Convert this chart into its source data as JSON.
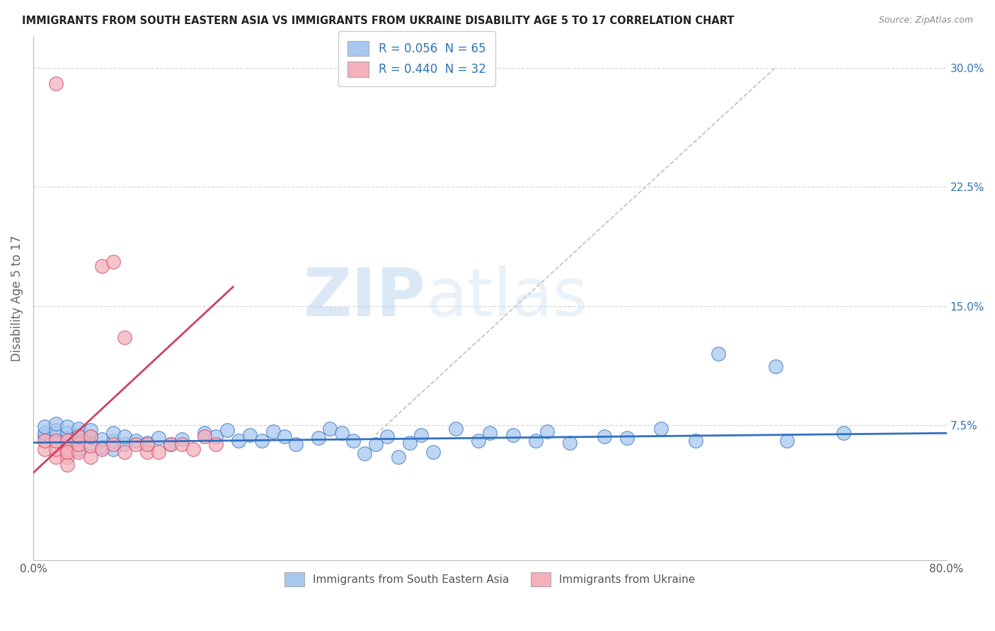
{
  "title": "IMMIGRANTS FROM SOUTH EASTERN ASIA VS IMMIGRANTS FROM UKRAINE DISABILITY AGE 5 TO 17 CORRELATION CHART",
  "source": "Source: ZipAtlas.com",
  "ylabel": "Disability Age 5 to 17",
  "xlim": [
    0.0,
    0.8
  ],
  "ylim": [
    -0.01,
    0.32
  ],
  "yticks": [
    0.075,
    0.15,
    0.225,
    0.3
  ],
  "ytick_labels": [
    "7.5%",
    "15.0%",
    "22.5%",
    "30.0%"
  ],
  "color_blue": "#a8c8f0",
  "color_pink": "#f4b0bb",
  "color_blue_line": "#3070c0",
  "color_pink_line": "#d04060",
  "color_text_blue": "#2E75B6",
  "color_diag_line": "#c0c0c0",
  "watermark_color": "#d8eaf8",
  "background_color": "#ffffff",
  "grid_color": "#d8d8d8",
  "blue_x": [
    0.01,
    0.01,
    0.01,
    0.02,
    0.02,
    0.02,
    0.02,
    0.03,
    0.03,
    0.03,
    0.03,
    0.04,
    0.04,
    0.04,
    0.04,
    0.05,
    0.05,
    0.05,
    0.06,
    0.06,
    0.07,
    0.07,
    0.07,
    0.08,
    0.08,
    0.09,
    0.1,
    0.11,
    0.12,
    0.13,
    0.15,
    0.16,
    0.17,
    0.18,
    0.19,
    0.2,
    0.21,
    0.22,
    0.23,
    0.25,
    0.26,
    0.27,
    0.28,
    0.29,
    0.3,
    0.31,
    0.32,
    0.33,
    0.34,
    0.35,
    0.37,
    0.39,
    0.4,
    0.42,
    0.44,
    0.45,
    0.47,
    0.5,
    0.52,
    0.55,
    0.58,
    0.6,
    0.65,
    0.66,
    0.71
  ],
  "blue_y": [
    0.068,
    0.07,
    0.074,
    0.065,
    0.068,
    0.072,
    0.076,
    0.063,
    0.067,
    0.07,
    0.074,
    0.06,
    0.065,
    0.069,
    0.073,
    0.064,
    0.068,
    0.072,
    0.061,
    0.066,
    0.06,
    0.065,
    0.07,
    0.063,
    0.068,
    0.065,
    0.064,
    0.067,
    0.063,
    0.066,
    0.07,
    0.068,
    0.072,
    0.065,
    0.069,
    0.065,
    0.071,
    0.068,
    0.063,
    0.067,
    0.073,
    0.07,
    0.065,
    0.057,
    0.063,
    0.068,
    0.055,
    0.064,
    0.069,
    0.058,
    0.073,
    0.065,
    0.07,
    0.069,
    0.065,
    0.071,
    0.064,
    0.068,
    0.067,
    0.073,
    0.065,
    0.12,
    0.112,
    0.065,
    0.07
  ],
  "pink_x": [
    0.01,
    0.01,
    0.02,
    0.02,
    0.02,
    0.02,
    0.03,
    0.03,
    0.03,
    0.03,
    0.03,
    0.04,
    0.04,
    0.04,
    0.05,
    0.05,
    0.05,
    0.06,
    0.06,
    0.07,
    0.07,
    0.08,
    0.08,
    0.09,
    0.1,
    0.1,
    0.11,
    0.12,
    0.13,
    0.14,
    0.15,
    0.16
  ],
  "pink_y": [
    0.06,
    0.065,
    0.055,
    0.06,
    0.065,
    0.29,
    0.055,
    0.06,
    0.065,
    0.05,
    0.058,
    0.058,
    0.063,
    0.068,
    0.055,
    0.062,
    0.068,
    0.06,
    0.175,
    0.063,
    0.178,
    0.058,
    0.13,
    0.063,
    0.058,
    0.063,
    0.058,
    0.063,
    0.063,
    0.06,
    0.068,
    0.063
  ],
  "blue_trend_x": [
    0.0,
    0.8
  ],
  "blue_trend_y": [
    0.064,
    0.07
  ],
  "pink_trend_x": [
    0.0,
    0.175
  ],
  "pink_trend_y": [
    0.045,
    0.162
  ],
  "diag_line_x": [
    0.3,
    0.65
  ],
  "diag_line_y": [
    0.069,
    0.3
  ]
}
